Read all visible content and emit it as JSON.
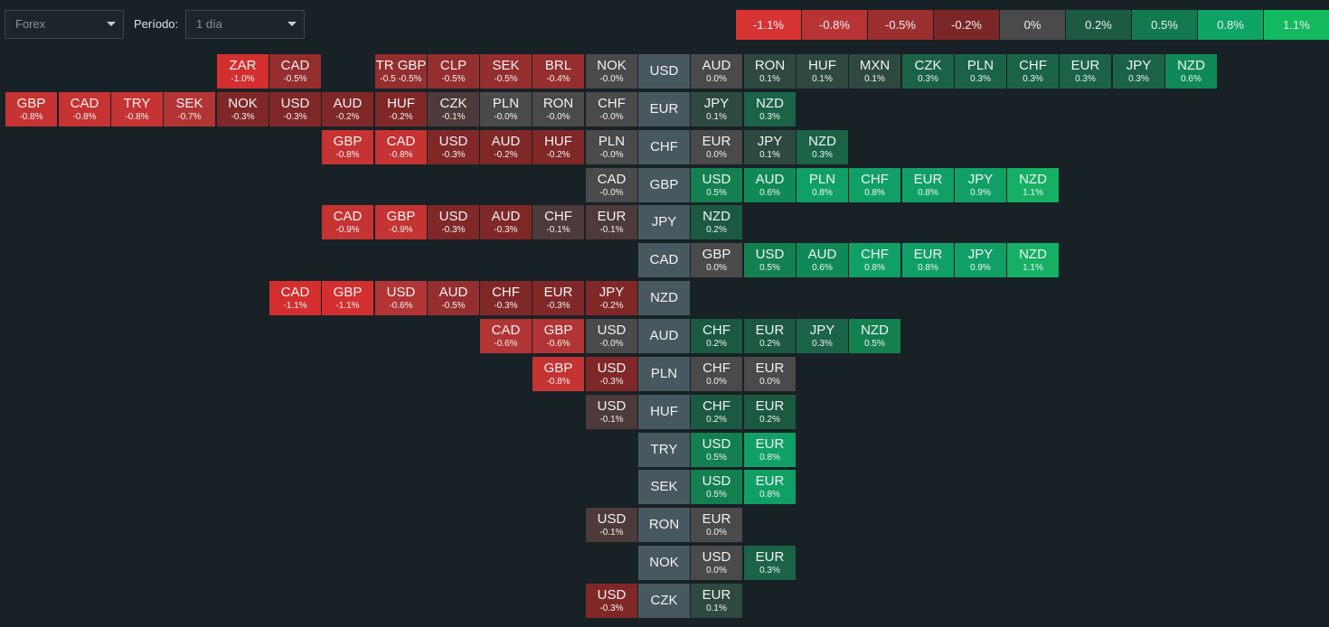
{
  "filters": {
    "market": {
      "value": "Forex"
    },
    "period": {
      "label": "Período:",
      "value": "1 día"
    }
  },
  "legend": [
    {
      "label": "-1.1%",
      "color": "#d93434"
    },
    {
      "label": "-0.8%",
      "color": "#b83434"
    },
    {
      "label": "-0.5%",
      "color": "#9c2f2f"
    },
    {
      "label": "-0.2%",
      "color": "#7c2727"
    },
    {
      "label": "0%",
      "color": "#4a4a4a"
    },
    {
      "label": "0.2%",
      "color": "#1c5b41"
    },
    {
      "label": "0.5%",
      "color": "#137a4f"
    },
    {
      "label": "0.8%",
      "color": "#0ea463"
    },
    {
      "label": "1.1%",
      "color": "#13b95e"
    }
  ],
  "rows": [
    {
      "base": "USD",
      "left": [
        [
          "ZAR",
          "-1.0%",
          -1.0
        ],
        [
          "CAD",
          "-0.5%",
          -0.5
        ],
        null,
        [
          "TR GBP",
          "-0.5 -0.5%",
          -0.5
        ],
        [
          "CLP",
          "-0.5%",
          -0.5
        ],
        [
          "SEK",
          "-0.5%",
          -0.5
        ],
        [
          "BRL",
          "-0.4%",
          -0.4
        ],
        [
          "NOK",
          "-0.0%",
          0
        ]
      ],
      "right": [
        [
          "AUD",
          "0.0%",
          0
        ],
        [
          "RON",
          "0.1%",
          0.1
        ],
        [
          "HUF",
          "0.1%",
          0.1
        ],
        [
          "MXN",
          "0.1%",
          0.1
        ],
        [
          "CZK",
          "0.3%",
          0.3
        ],
        [
          "PLN",
          "0.3%",
          0.3
        ],
        [
          "CHF",
          "0.3%",
          0.3
        ],
        [
          "EUR",
          "0.3%",
          0.3
        ],
        [
          "JPY",
          "0.3%",
          0.3
        ],
        [
          "NZD",
          "0.6%",
          0.6
        ]
      ]
    },
    {
      "base": "EUR",
      "left": [
        [
          "GBP",
          "-0.8%",
          -0.8
        ],
        [
          "CAD",
          "-0.8%",
          -0.8
        ],
        [
          "TRY",
          "-0.8%",
          -0.8
        ],
        [
          "SEK",
          "-0.7%",
          -0.7
        ],
        [
          "NOK",
          "-0.3%",
          -0.3
        ],
        [
          "USD",
          "-0.3%",
          -0.3
        ],
        [
          "AUD",
          "-0.2%",
          -0.2
        ],
        [
          "HUF",
          "-0.2%",
          -0.2
        ],
        [
          "CZK",
          "-0.1%",
          -0.1
        ],
        [
          "PLN",
          "-0.0%",
          0
        ],
        [
          "RON",
          "-0.0%",
          0
        ],
        [
          "CHF",
          "-0.0%",
          0
        ]
      ],
      "right": [
        [
          "JPY",
          "0.1%",
          0.1
        ],
        [
          "NZD",
          "0.3%",
          0.3
        ]
      ]
    },
    {
      "base": "CHF",
      "left": [
        [
          "GBP",
          "-0.8%",
          -0.8
        ],
        [
          "CAD",
          "-0.8%",
          -0.8
        ],
        [
          "USD",
          "-0.3%",
          -0.3
        ],
        [
          "AUD",
          "-0.2%",
          -0.2
        ],
        [
          "HUF",
          "-0.2%",
          -0.2
        ],
        [
          "PLN",
          "-0.0%",
          0
        ]
      ],
      "right": [
        [
          "EUR",
          "0.0%",
          0
        ],
        [
          "JPY",
          "0.1%",
          0.1
        ],
        [
          "NZD",
          "0.3%",
          0.3
        ]
      ]
    },
    {
      "base": "GBP",
      "left": [
        [
          "CAD",
          "-0.0%",
          0
        ]
      ],
      "right": [
        [
          "USD",
          "0.5%",
          0.5
        ],
        [
          "AUD",
          "0.6%",
          0.6
        ],
        [
          "PLN",
          "0.8%",
          0.8
        ],
        [
          "CHF",
          "0.8%",
          0.8
        ],
        [
          "EUR",
          "0.8%",
          0.8
        ],
        [
          "JPY",
          "0.9%",
          0.9
        ],
        [
          "NZD",
          "1.1%",
          1.1
        ]
      ]
    },
    {
      "base": "JPY",
      "left": [
        [
          "CAD",
          "-0.9%",
          -0.9
        ],
        [
          "GBP",
          "-0.9%",
          -0.9
        ],
        [
          "USD",
          "-0.3%",
          -0.3
        ],
        [
          "AUD",
          "-0.3%",
          -0.3
        ],
        [
          "CHF",
          "-0.1%",
          -0.1
        ],
        [
          "EUR",
          "-0.1%",
          -0.1
        ]
      ],
      "right": [
        [
          "NZD",
          "0.2%",
          0.2
        ]
      ]
    },
    {
      "base": "CAD",
      "left": [],
      "right": [
        [
          "GBP",
          "0.0%",
          0
        ],
        [
          "USD",
          "0.5%",
          0.5
        ],
        [
          "AUD",
          "0.6%",
          0.6
        ],
        [
          "CHF",
          "0.8%",
          0.8
        ],
        [
          "EUR",
          "0.8%",
          0.8
        ],
        [
          "JPY",
          "0.9%",
          0.9
        ],
        [
          "NZD",
          "1.1%",
          1.1
        ]
      ]
    },
    {
      "base": "NZD",
      "left": [
        [
          "CAD",
          "-1.1%",
          -1.1
        ],
        [
          "GBP",
          "-1.1%",
          -1.1
        ],
        [
          "USD",
          "-0.6%",
          -0.6
        ],
        [
          "AUD",
          "-0.5%",
          -0.5
        ],
        [
          "CHF",
          "-0.3%",
          -0.3
        ],
        [
          "EUR",
          "-0.3%",
          -0.3
        ],
        [
          "JPY",
          "-0.2%",
          -0.2
        ]
      ],
      "right": []
    },
    {
      "base": "AUD",
      "left": [
        [
          "CAD",
          "-0.6%",
          -0.6
        ],
        [
          "GBP",
          "-0.6%",
          -0.6
        ],
        [
          "USD",
          "-0.0%",
          0
        ]
      ],
      "right": [
        [
          "CHF",
          "0.2%",
          0.2
        ],
        [
          "EUR",
          "0.2%",
          0.2
        ],
        [
          "JPY",
          "0.3%",
          0.3
        ],
        [
          "NZD",
          "0.5%",
          0.5
        ]
      ]
    },
    {
      "base": "PLN",
      "left": [
        [
          "GBP",
          "-0.8%",
          -0.8
        ],
        [
          "USD",
          "-0.3%",
          -0.3
        ]
      ],
      "right": [
        [
          "CHF",
          "0.0%",
          0
        ],
        [
          "EUR",
          "0.0%",
          0
        ]
      ]
    },
    {
      "base": "HUF",
      "left": [
        [
          "USD",
          "-0.1%",
          -0.1
        ]
      ],
      "right": [
        [
          "CHF",
          "0.2%",
          0.2
        ],
        [
          "EUR",
          "0.2%",
          0.2
        ]
      ]
    },
    {
      "base": "TRY",
      "left": [],
      "right": [
        [
          "USD",
          "0.5%",
          0.5
        ],
        [
          "EUR",
          "0.8%",
          0.8
        ]
      ]
    },
    {
      "base": "SEK",
      "left": [],
      "right": [
        [
          "USD",
          "0.5%",
          0.5
        ],
        [
          "EUR",
          "0.8%",
          0.8
        ]
      ]
    },
    {
      "base": "RON",
      "left": [
        [
          "USD",
          "-0.1%",
          -0.1
        ]
      ],
      "right": [
        [
          "EUR",
          "0.0%",
          0
        ]
      ]
    },
    {
      "base": "NOK",
      "left": [],
      "right": [
        [
          "USD",
          "0.0%",
          0
        ],
        [
          "EUR",
          "0.3%",
          0.3
        ]
      ]
    },
    {
      "base": "CZK",
      "left": [
        [
          "USD",
          "-0.3%",
          -0.3
        ]
      ],
      "right": [
        [
          "EUR",
          "0.1%",
          0.1
        ]
      ]
    }
  ]
}
